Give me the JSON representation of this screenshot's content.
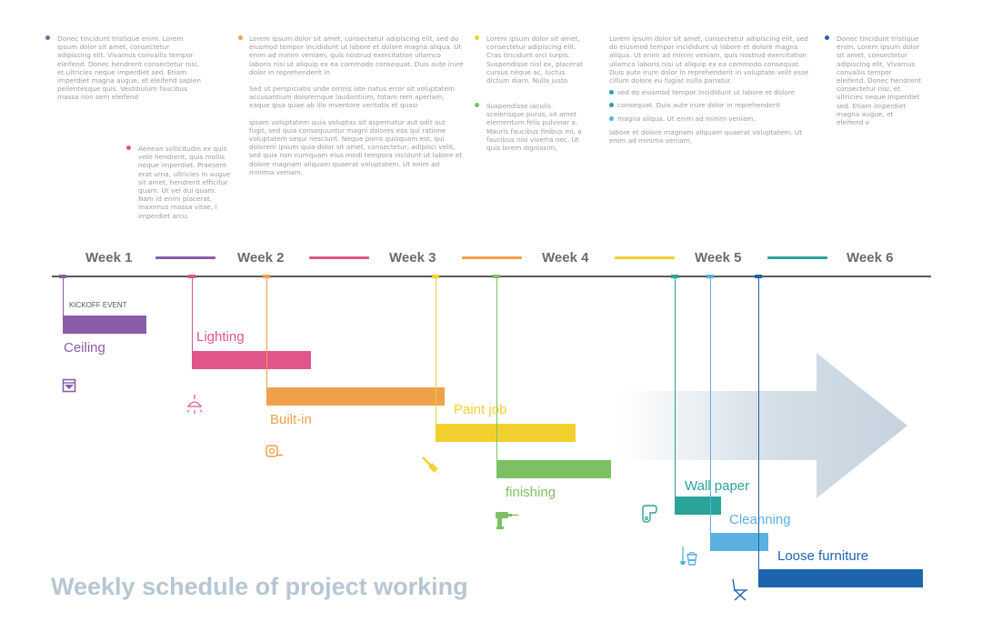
{
  "notes": [
    {
      "id": "n1",
      "color": "#8a5ca8",
      "paras": [
        "Donec tincidunt tristique enim. Lorem ipsum dolor sit amet, consectetur adipiscing elit. Vivamus convallis tempor eleifend. Donec hendrerit consectetur nisi, et ultricies neque imperdiet sed. Etiam imperdiet magna augue, et eleifend sapien pellentesque quis. Vestibulum faucibus massa non sem eleifend"
      ]
    },
    {
      "id": "n2",
      "color": "#e0558a",
      "paras": [
        "Aenean sollicitudin ex quis velit hendrerit, quis mollis neque imperdiet. Praesent erat urna, ultricies in augue sit amet, hendrerit efficitur quam. Ut vel dui quam. Nam id enim placerat, maximus massa vitae, l imperdiet arcu."
      ]
    },
    {
      "id": "n3",
      "color": "#f0a04a",
      "paras": [
        "Lorem ipsum dolor sit amet, consectetur adipiscing elit, sed do eiusmod tempor incididunt ut labore et dolore magna aliqua. Ut enim ad minim veniam, quis nostrud exercitation ullamco laboris nisi ut aliquip ex ea commodo consequat. Duis aute irure dolor in reprehenderit in",
        "Sed ut perspiciatis unde omnis iste natus error sit voluptatem accusantium doloremque laudantium, totam rem aperiam, eaque ipsa quae ab illo inventore veritatis et quasi",
        "ipsam voluptatem quia voluptas sit aspernatur aut odit aut fugit, sed quia consequuntur magni dolores eos qui ratione voluptatem sequi nesciunt. Neque porro quisquam est, qui dolorem ipsum quia dolor sit amet, consectetur, adipisci velit, sed quia non numquam eius modi tempora incidunt ut labore et dolore magnam aliquam quaerat voluptatem. Ut enim ad minima veniam,"
      ]
    },
    {
      "id": "n4",
      "color": "#f2d02e",
      "paras": [
        "Lorem ipsum dolor sit amet, consectetur adipiscing elit. Cras tincidunt orci turpis. Suspendisse nisl ex, placerat cursus neque ac, luctus dictum diam. Nulla justo"
      ]
    },
    {
      "id": "n5",
      "color": "#7cc063",
      "paras": [
        "Suspendisse iaculis scelerisque purus, sit amet elementum felis pulvinar a. Mauris faucibus finibus mi, a faucibus nisi viverra nec. Ut quis lorem dignissim,"
      ]
    },
    {
      "id": "n6",
      "color": "#2aa39a",
      "paras": [
        "Lorem ipsum dolor sit amet, consectetur adipiscing elit, sed do eiusmod tempor incididunt ut labore et dolore magna aliqua. Ut enim ad minim veniam, quis nostrud exercitation ullamco laboris nisi ut aliquip ex ea commodo consequat. Duis aute irure dolor in reprehenderit in voluptate velit esse cillum dolore eu fugiat nulla pariatur."
      ],
      "bullets": [
        {
          "text": "sed do eiusmod tempor incididunt ut labore et dolore",
          "color": "#2aa39a"
        },
        {
          "text": "consequat. Duis aute irure dolor in reprehenderit",
          "color": "#2aa39a"
        },
        {
          "text": "magna aliqua. Ut enim ad minim veniam,",
          "color": "#5ab0e0"
        }
      ],
      "after": "labore et dolore magnam aliquam quaerat voluptatem. Ut enim ad minima veniam,"
    },
    {
      "id": "n7",
      "color": "#1e64ad",
      "paras": [
        "Donec tincidunt tristique enim. Lorem ipsum dolor sit amet, consectetur adipiscing elit. Vivamus convallis tempor eleifend. Donec hendrerit consectetur nisi, et ultricies neque imperdiet sed. Etiam imperdiet magna augue, et eleifend v"
      ]
    }
  ],
  "weeks": [
    "Week 1",
    "Week 2",
    "Week 3",
    "Week 4",
    "Week 5",
    "Week 6"
  ],
  "separator_colors": [
    "#8a5ca8",
    "#e0558a",
    "#f0a04a",
    "#f2d02e",
    "#2aa39a"
  ],
  "kickoff_label": "KICKOFF EVENT",
  "tasks": [
    {
      "name": "Ceiling",
      "color": "#8a5ca8",
      "start_week": 0.0,
      "end_week": 0.55,
      "icon": "window-frame-icon"
    },
    {
      "name": "Lighting",
      "color": "#e0558a",
      "start_week": 0.85,
      "end_week": 1.63,
      "icon": "ceiling-lamp-icon"
    },
    {
      "name": "Built-in",
      "color": "#f0a04a",
      "start_week": 1.34,
      "end_week": 2.51,
      "icon": "tape-measure-icon"
    },
    {
      "name": "Paint job",
      "color": "#f2d02e",
      "start_week": 2.45,
      "end_week": 3.37,
      "icon": "paint-brush-icon"
    },
    {
      "name": "finishing",
      "color": "#7cc063",
      "start_week": 2.85,
      "end_week": 3.6,
      "icon": "power-drill-icon"
    },
    {
      "name": "Wall paper",
      "color": "#2aa39a",
      "start_week": 4.02,
      "end_week": 4.32,
      "icon": "wallpaper-roll-icon"
    },
    {
      "name": "Cleanning",
      "color": "#5ab0e0",
      "start_week": 4.25,
      "end_week": 4.63,
      "icon": "cleaning-bucket-icon"
    },
    {
      "name": "Loose furniture",
      "color": "#1e64ad",
      "start_week": 4.57,
      "end_week": 5.65,
      "icon": "folding-chair-icon"
    }
  ],
  "title": "Weekly schedule of project working",
  "colors": {
    "axis": "#5a5a5a",
    "week_text": "#6b6b6b",
    "title": "#b7c6d4",
    "note_text": "#9b9b9b",
    "arrow": "#c5d3de"
  }
}
